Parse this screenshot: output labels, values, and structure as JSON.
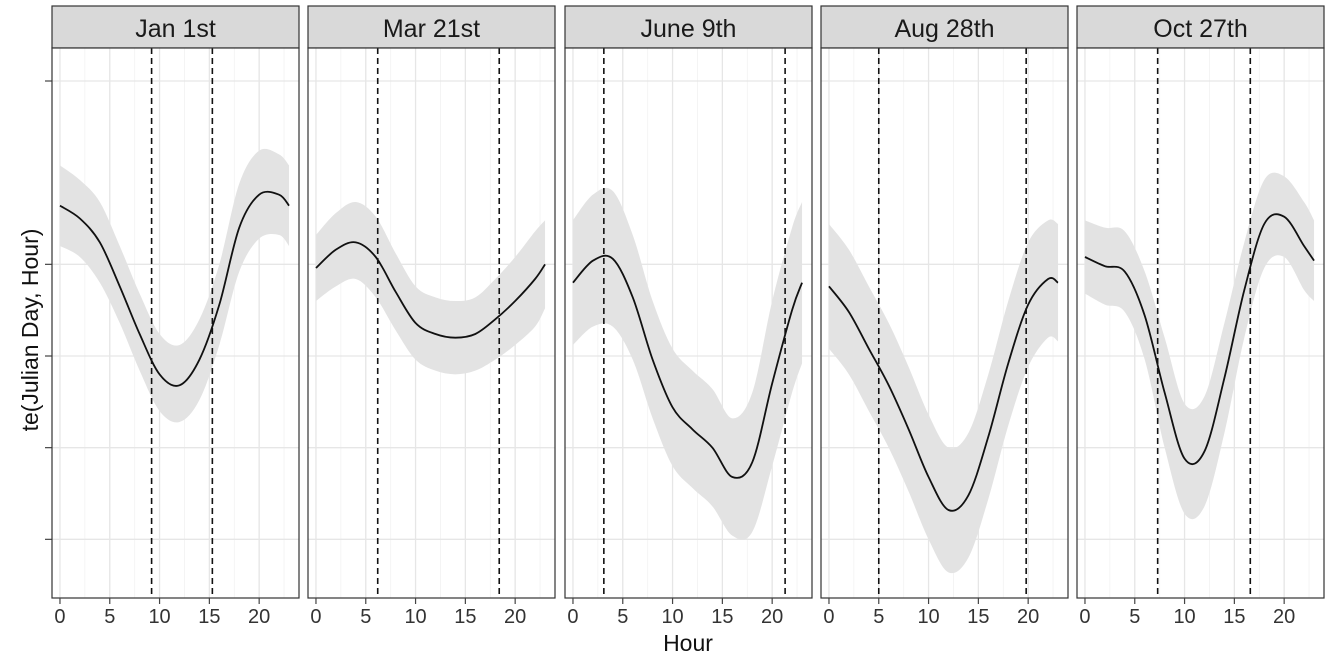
{
  "chart_data": {
    "type": "line",
    "xlabel": "Hour",
    "ylabel": "te(Julian Day, Hour)",
    "xlim": [
      -0.8,
      24.0
    ],
    "ylim": [
      -1.32,
      1.68
    ],
    "x_ticks": [
      0,
      5,
      10,
      15,
      20
    ],
    "y_ticks": [
      -1,
      -0.5,
      0,
      0.5,
      1.5
    ],
    "grid": true,
    "panels": [
      {
        "label": "Jan 1st",
        "vlines": [
          9.2,
          15.3
        ],
        "series": [
          {
            "x": 0,
            "y": 0.82,
            "lo": 0.6,
            "hi": 1.04
          },
          {
            "x": 2,
            "y": 0.75,
            "lo": 0.54,
            "hi": 0.96
          },
          {
            "x": 4,
            "y": 0.62,
            "lo": 0.4,
            "hi": 0.84
          },
          {
            "x": 6,
            "y": 0.38,
            "lo": 0.18,
            "hi": 0.6
          },
          {
            "x": 8,
            "y": 0.12,
            "lo": -0.08,
            "hi": 0.34
          },
          {
            "x": 10,
            "y": -0.1,
            "lo": -0.3,
            "hi": 0.12
          },
          {
            "x": 12,
            "y": -0.16,
            "lo": -0.36,
            "hi": 0.06
          },
          {
            "x": 14,
            "y": -0.02,
            "lo": -0.24,
            "hi": 0.2
          },
          {
            "x": 16,
            "y": 0.28,
            "lo": 0.06,
            "hi": 0.5
          },
          {
            "x": 18,
            "y": 0.7,
            "lo": 0.46,
            "hi": 0.94
          },
          {
            "x": 20,
            "y": 0.88,
            "lo": 0.64,
            "hi": 1.12
          },
          {
            "x": 22,
            "y": 0.88,
            "lo": 0.66,
            "hi": 1.1
          },
          {
            "x": 23,
            "y": 0.82,
            "lo": 0.6,
            "hi": 1.04
          }
        ]
      },
      {
        "label": "Mar 21st",
        "vlines": [
          6.2,
          18.4
        ],
        "series": [
          {
            "x": 0,
            "y": 0.48,
            "lo": 0.3,
            "hi": 0.66
          },
          {
            "x": 2,
            "y": 0.58,
            "lo": 0.38,
            "hi": 0.78
          },
          {
            "x": 4,
            "y": 0.62,
            "lo": 0.42,
            "hi": 0.84
          },
          {
            "x": 6,
            "y": 0.54,
            "lo": 0.32,
            "hi": 0.76
          },
          {
            "x": 8,
            "y": 0.35,
            "lo": 0.14,
            "hi": 0.56
          },
          {
            "x": 10,
            "y": 0.18,
            "lo": -0.02,
            "hi": 0.38
          },
          {
            "x": 12,
            "y": 0.12,
            "lo": -0.08,
            "hi": 0.32
          },
          {
            "x": 14,
            "y": 0.1,
            "lo": -0.1,
            "hi": 0.3
          },
          {
            "x": 16,
            "y": 0.12,
            "lo": -0.08,
            "hi": 0.32
          },
          {
            "x": 18,
            "y": 0.2,
            "lo": -0.02,
            "hi": 0.42
          },
          {
            "x": 20,
            "y": 0.3,
            "lo": 0.06,
            "hi": 0.54
          },
          {
            "x": 22,
            "y": 0.42,
            "lo": 0.16,
            "hi": 0.68
          },
          {
            "x": 23,
            "y": 0.5,
            "lo": 0.26,
            "hi": 0.74
          }
        ]
      },
      {
        "label": "June 9th",
        "vlines": [
          3.1,
          21.3
        ],
        "series": [
          {
            "x": 0,
            "y": 0.4,
            "lo": 0.06,
            "hi": 0.74
          },
          {
            "x": 2,
            "y": 0.52,
            "lo": 0.16,
            "hi": 0.88
          },
          {
            "x": 4,
            "y": 0.53,
            "lo": 0.16,
            "hi": 0.9
          },
          {
            "x": 6,
            "y": 0.32,
            "lo": -0.02,
            "hi": 0.66
          },
          {
            "x": 8,
            "y": -0.02,
            "lo": -0.34,
            "hi": 0.3
          },
          {
            "x": 10,
            "y": -0.28,
            "lo": -0.6,
            "hi": 0.04
          },
          {
            "x": 12,
            "y": -0.4,
            "lo": -0.72,
            "hi": -0.08
          },
          {
            "x": 14,
            "y": -0.5,
            "lo": -0.82,
            "hi": -0.18
          },
          {
            "x": 16,
            "y": -0.66,
            "lo": -0.98,
            "hi": -0.34
          },
          {
            "x": 18,
            "y": -0.58,
            "lo": -0.96,
            "hi": -0.2
          },
          {
            "x": 20,
            "y": -0.15,
            "lo": -0.6,
            "hi": 0.3
          },
          {
            "x": 22,
            "y": 0.25,
            "lo": -0.2,
            "hi": 0.7
          },
          {
            "x": 23,
            "y": 0.4,
            "lo": -0.04,
            "hi": 0.84
          }
        ]
      },
      {
        "label": "Aug 28th",
        "vlines": [
          5.0,
          19.8
        ],
        "series": [
          {
            "x": 0,
            "y": 0.38,
            "lo": 0.04,
            "hi": 0.72
          },
          {
            "x": 2,
            "y": 0.24,
            "lo": -0.1,
            "hi": 0.58
          },
          {
            "x": 4,
            "y": 0.04,
            "lo": -0.3,
            "hi": 0.38
          },
          {
            "x": 6,
            "y": -0.16,
            "lo": -0.5,
            "hi": 0.18
          },
          {
            "x": 8,
            "y": -0.4,
            "lo": -0.74,
            "hi": -0.06
          },
          {
            "x": 10,
            "y": -0.66,
            "lo": -1.0,
            "hi": -0.32
          },
          {
            "x": 12,
            "y": -0.84,
            "lo": -1.18,
            "hi": -0.5
          },
          {
            "x": 14,
            "y": -0.76,
            "lo": -1.1,
            "hi": -0.42
          },
          {
            "x": 16,
            "y": -0.44,
            "lo": -0.78,
            "hi": -0.1
          },
          {
            "x": 18,
            "y": -0.04,
            "lo": -0.38,
            "hi": 0.3
          },
          {
            "x": 20,
            "y": 0.28,
            "lo": -0.06,
            "hi": 0.62
          },
          {
            "x": 22,
            "y": 0.42,
            "lo": 0.1,
            "hi": 0.74
          },
          {
            "x": 23,
            "y": 0.4,
            "lo": 0.08,
            "hi": 0.72
          }
        ]
      },
      {
        "label": "Oct 27th",
        "vlines": [
          7.3,
          16.6
        ],
        "series": [
          {
            "x": 0,
            "y": 0.54,
            "lo": 0.34,
            "hi": 0.74
          },
          {
            "x": 2,
            "y": 0.49,
            "lo": 0.28,
            "hi": 0.7
          },
          {
            "x": 4,
            "y": 0.46,
            "lo": 0.24,
            "hi": 0.68
          },
          {
            "x": 6,
            "y": 0.22,
            "lo": -0.02,
            "hi": 0.46
          },
          {
            "x": 8,
            "y": -0.2,
            "lo": -0.5,
            "hi": 0.1
          },
          {
            "x": 10,
            "y": -0.56,
            "lo": -0.86,
            "hi": -0.26
          },
          {
            "x": 12,
            "y": -0.52,
            "lo": -0.82,
            "hi": -0.22
          },
          {
            "x": 14,
            "y": -0.12,
            "lo": -0.42,
            "hi": 0.18
          },
          {
            "x": 16,
            "y": 0.36,
            "lo": 0.1,
            "hi": 0.62
          },
          {
            "x": 18,
            "y": 0.72,
            "lo": 0.48,
            "hi": 0.96
          },
          {
            "x": 20,
            "y": 0.76,
            "lo": 0.54,
            "hi": 0.98
          },
          {
            "x": 22,
            "y": 0.6,
            "lo": 0.36,
            "hi": 0.84
          },
          {
            "x": 23,
            "y": 0.52,
            "lo": 0.3,
            "hi": 0.74
          }
        ]
      }
    ]
  },
  "colors": {
    "ribbon": "#e3e3e3",
    "line": "#111111",
    "strip_fill": "#d9d9d9",
    "strip_border": "#333333",
    "panel_border": "#333333",
    "grid_major": "#e6e6e6",
    "grid_minor": "#f2f2f2",
    "vline": "#111111"
  }
}
